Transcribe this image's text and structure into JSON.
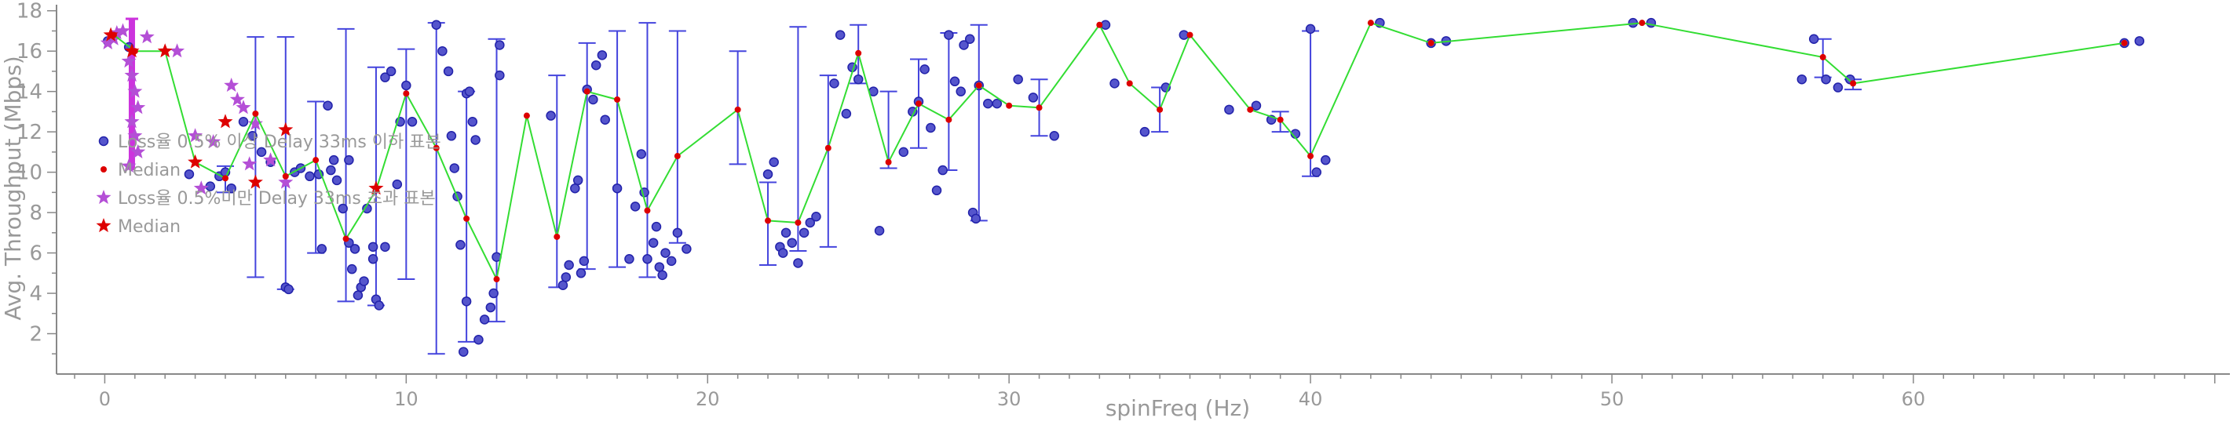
{
  "chart_data": {
    "type": "scatter",
    "title": "",
    "xlabel": "spinFreq (Hz)",
    "ylabel": "Avg. Throughput (Mbps)",
    "xlim": [
      -1.6,
      70.5
    ],
    "ylim": [
      0,
      18.3
    ],
    "xticks": [
      0,
      10,
      20,
      30,
      40,
      50,
      60
    ],
    "yticks": [
      2,
      4,
      6,
      8,
      10,
      12,
      14,
      16,
      18
    ],
    "grid": false,
    "legend_position": "left",
    "legend": [
      {
        "label": "Loss율 0.5% 이상 Delay 33ms 이하 표본",
        "marker": "circle",
        "color": "#5555cc"
      },
      {
        "label": "Median",
        "marker": "dot",
        "color": "#dd0000"
      },
      {
        "label": "Loss율 0.5%미만 Delay 33ms 초과 표본",
        "marker": "star",
        "color": "#b44fd6"
      },
      {
        "label": "Median",
        "marker": "star",
        "color": "#dd0000"
      }
    ],
    "colors": {
      "blue_points": "#5555cc",
      "blue_outline": "#2222aa",
      "error_bars": "#4444dd",
      "median_line": "#33dd33",
      "median": "#dd0000",
      "purple_stars": "#b44fd6",
      "purple_bar": "#cc33dd",
      "axis": "#888888"
    },
    "series": [
      {
        "name": "Loss율 0.5% 이상 Delay 33ms 이하 표본",
        "marker": "circle",
        "points": [
          [
            0.1,
            16.5
          ],
          [
            0.8,
            16.2
          ],
          [
            2.8,
            9.9
          ],
          [
            3.5,
            9.3
          ],
          [
            3.8,
            9.8
          ],
          [
            4.0,
            10.0
          ],
          [
            4.2,
            9.2
          ],
          [
            4.6,
            12.5
          ],
          [
            4.9,
            11.8
          ],
          [
            5.2,
            11.0
          ],
          [
            5.5,
            10.5
          ],
          [
            6.0,
            4.3
          ],
          [
            6.1,
            4.2
          ],
          [
            6.3,
            10.0
          ],
          [
            6.5,
            10.2
          ],
          [
            6.8,
            9.8
          ],
          [
            7.1,
            9.9
          ],
          [
            7.2,
            6.2
          ],
          [
            7.4,
            13.3
          ],
          [
            7.5,
            10.1
          ],
          [
            7.6,
            10.6
          ],
          [
            7.7,
            9.6
          ],
          [
            7.9,
            8.2
          ],
          [
            8.1,
            10.6
          ],
          [
            8.1,
            6.5
          ],
          [
            8.2,
            5.2
          ],
          [
            8.3,
            6.2
          ],
          [
            8.4,
            3.9
          ],
          [
            8.5,
            4.3
          ],
          [
            8.6,
            4.6
          ],
          [
            8.7,
            8.2
          ],
          [
            8.9,
            5.7
          ],
          [
            8.9,
            6.3
          ],
          [
            9.0,
            3.7
          ],
          [
            9.1,
            3.4
          ],
          [
            9.3,
            6.3
          ],
          [
            9.3,
            14.7
          ],
          [
            9.5,
            15.0
          ],
          [
            9.7,
            9.4
          ],
          [
            9.8,
            12.5
          ],
          [
            10.0,
            14.3
          ],
          [
            10.2,
            12.5
          ],
          [
            11.0,
            17.3
          ],
          [
            11.2,
            16.0
          ],
          [
            11.4,
            15.0
          ],
          [
            11.5,
            11.8
          ],
          [
            11.6,
            10.2
          ],
          [
            11.7,
            8.8
          ],
          [
            11.8,
            6.4
          ],
          [
            11.9,
            1.1
          ],
          [
            12.0,
            3.6
          ],
          [
            12.0,
            13.9
          ],
          [
            12.1,
            14.0
          ],
          [
            12.2,
            12.5
          ],
          [
            12.3,
            11.6
          ],
          [
            12.4,
            1.7
          ],
          [
            12.6,
            2.7
          ],
          [
            12.8,
            3.3
          ],
          [
            12.9,
            4.0
          ],
          [
            13.0,
            5.8
          ],
          [
            13.1,
            14.8
          ],
          [
            13.1,
            16.3
          ],
          [
            14.8,
            12.8
          ],
          [
            15.2,
            4.4
          ],
          [
            15.3,
            4.8
          ],
          [
            15.4,
            5.4
          ],
          [
            15.6,
            9.2
          ],
          [
            15.7,
            9.6
          ],
          [
            15.8,
            5.0
          ],
          [
            15.9,
            5.6
          ],
          [
            16.0,
            14.1
          ],
          [
            16.2,
            13.6
          ],
          [
            16.3,
            15.3
          ],
          [
            16.5,
            15.8
          ],
          [
            16.6,
            12.6
          ],
          [
            17.0,
            9.2
          ],
          [
            17.4,
            5.7
          ],
          [
            17.6,
            8.3
          ],
          [
            17.8,
            10.9
          ],
          [
            17.9,
            9.0
          ],
          [
            18.0,
            5.7
          ],
          [
            18.2,
            6.5
          ],
          [
            18.3,
            7.3
          ],
          [
            18.4,
            5.3
          ],
          [
            18.5,
            4.9
          ],
          [
            18.6,
            6.0
          ],
          [
            18.8,
            5.6
          ],
          [
            19.0,
            7.0
          ],
          [
            19.3,
            6.2
          ],
          [
            22.0,
            9.9
          ],
          [
            22.2,
            10.5
          ],
          [
            22.4,
            6.3
          ],
          [
            22.5,
            6.0
          ],
          [
            22.6,
            7.0
          ],
          [
            22.8,
            6.5
          ],
          [
            23.0,
            5.5
          ],
          [
            23.2,
            7.0
          ],
          [
            23.4,
            7.5
          ],
          [
            23.6,
            7.8
          ],
          [
            24.2,
            14.4
          ],
          [
            24.4,
            16.8
          ],
          [
            24.6,
            12.9
          ],
          [
            24.8,
            15.2
          ],
          [
            25.0,
            14.6
          ],
          [
            25.5,
            14.0
          ],
          [
            25.7,
            7.1
          ],
          [
            26.5,
            11.0
          ],
          [
            26.8,
            13.0
          ],
          [
            27.0,
            13.5
          ],
          [
            27.2,
            15.1
          ],
          [
            27.4,
            12.2
          ],
          [
            27.6,
            9.1
          ],
          [
            27.8,
            10.1
          ],
          [
            28.0,
            16.8
          ],
          [
            28.2,
            14.5
          ],
          [
            28.4,
            14.0
          ],
          [
            28.5,
            16.3
          ],
          [
            28.7,
            16.6
          ],
          [
            28.8,
            8.0
          ],
          [
            28.9,
            7.7
          ],
          [
            29.0,
            14.3
          ],
          [
            29.3,
            13.4
          ],
          [
            29.6,
            13.4
          ],
          [
            30.3,
            14.6
          ],
          [
            30.8,
            13.7
          ],
          [
            31.5,
            11.8
          ],
          [
            33.2,
            17.3
          ],
          [
            33.5,
            14.4
          ],
          [
            34.5,
            12.0
          ],
          [
            35.2,
            14.2
          ],
          [
            35.8,
            16.8
          ],
          [
            37.3,
            13.1
          ],
          [
            38.2,
            13.3
          ],
          [
            38.7,
            12.6
          ],
          [
            39.5,
            11.9
          ],
          [
            40.0,
            17.1
          ],
          [
            40.2,
            10.0
          ],
          [
            40.5,
            10.6
          ],
          [
            42.3,
            17.4
          ],
          [
            44.0,
            16.4
          ],
          [
            44.5,
            16.5
          ],
          [
            50.7,
            17.4
          ],
          [
            51.3,
            17.4
          ],
          [
            56.3,
            14.6
          ],
          [
            56.7,
            16.6
          ],
          [
            57.1,
            14.6
          ],
          [
            57.5,
            14.2
          ],
          [
            57.9,
            14.6
          ],
          [
            67.0,
            16.4
          ],
          [
            67.5,
            16.5
          ]
        ]
      },
      {
        "name": "Loss율 0.5%미만 Delay 33ms 초과 표본",
        "marker": "star",
        "points": [
          [
            0.1,
            16.4
          ],
          [
            0.3,
            16.6
          ],
          [
            0.4,
            16.9
          ],
          [
            0.6,
            17.0
          ],
          [
            0.8,
            15.5
          ],
          [
            0.9,
            14.8
          ],
          [
            1.0,
            14.0
          ],
          [
            1.1,
            13.2
          ],
          [
            0.9,
            12.5
          ],
          [
            1.0,
            11.8
          ],
          [
            1.1,
            11.0
          ],
          [
            0.8,
            10.3
          ],
          [
            1.4,
            16.7
          ],
          [
            2.4,
            16.0
          ],
          [
            3.0,
            11.8
          ],
          [
            3.2,
            9.2
          ],
          [
            3.6,
            11.5
          ],
          [
            4.2,
            14.3
          ],
          [
            4.4,
            13.6
          ],
          [
            4.6,
            13.2
          ],
          [
            4.8,
            10.4
          ],
          [
            5.0,
            12.4
          ],
          [
            5.5,
            10.6
          ],
          [
            6.0,
            9.5
          ]
        ]
      }
    ],
    "median_line": {
      "name": "Median",
      "points": [
        [
          0.3,
          16.8
        ],
        [
          1.0,
          16.0
        ],
        [
          2.0,
          16.0
        ],
        [
          3.0,
          10.5
        ],
        [
          4.0,
          9.7
        ],
        [
          5.0,
          12.9
        ],
        [
          6.0,
          9.8
        ],
        [
          7.0,
          10.6
        ],
        [
          8.0,
          6.7
        ],
        [
          9.0,
          9.1
        ],
        [
          10.0,
          13.9
        ],
        [
          11.0,
          11.2
        ],
        [
          12.0,
          7.7
        ],
        [
          13.0,
          4.7
        ],
        [
          14.0,
          12.8
        ],
        [
          15.0,
          6.8
        ],
        [
          16.0,
          14.0
        ],
        [
          17.0,
          13.6
        ],
        [
          18.0,
          8.1
        ],
        [
          19.0,
          10.8
        ],
        [
          21.0,
          13.1
        ],
        [
          22.0,
          7.6
        ],
        [
          23.0,
          7.5
        ],
        [
          24.0,
          11.2
        ],
        [
          25.0,
          15.9
        ],
        [
          26.0,
          10.5
        ],
        [
          27.0,
          13.4
        ],
        [
          28.0,
          12.6
        ],
        [
          29.0,
          14.3
        ],
        [
          30.0,
          13.3
        ],
        [
          31.0,
          13.2
        ],
        [
          33.0,
          17.3
        ],
        [
          34.0,
          14.4
        ],
        [
          35.0,
          13.1
        ],
        [
          36.0,
          16.8
        ],
        [
          38.0,
          13.1
        ],
        [
          39.0,
          12.6
        ],
        [
          40.0,
          10.8
        ],
        [
          42.0,
          17.4
        ],
        [
          44.0,
          16.4
        ],
        [
          51.0,
          17.4
        ],
        [
          57.0,
          15.7
        ],
        [
          58.0,
          14.4
        ],
        [
          67.0,
          16.4
        ]
      ]
    },
    "star_medians": {
      "name": "Median",
      "points": [
        [
          0.2,
          16.8
        ],
        [
          0.9,
          16.0
        ],
        [
          2.0,
          16.0
        ],
        [
          3.0,
          10.5
        ],
        [
          4.0,
          12.5
        ],
        [
          5.0,
          9.5
        ],
        [
          6.0,
          12.1
        ],
        [
          9.0,
          9.2
        ]
      ]
    },
    "error_bars": [
      [
        4.0,
        9.0,
        10.3
      ],
      [
        5.0,
        4.8,
        16.7
      ],
      [
        6.0,
        4.2,
        16.7
      ],
      [
        7.0,
        6.0,
        13.5
      ],
      [
        8.0,
        3.6,
        17.1
      ],
      [
        9.0,
        3.4,
        15.2
      ],
      [
        10.0,
        4.7,
        16.1
      ],
      [
        11.0,
        1.0,
        17.4
      ],
      [
        12.0,
        1.6,
        14.0
      ],
      [
        13.0,
        2.6,
        16.6
      ],
      [
        15.0,
        4.3,
        14.8
      ],
      [
        16.0,
        5.2,
        16.4
      ],
      [
        17.0,
        5.3,
        17.0
      ],
      [
        18.0,
        4.8,
        17.4
      ],
      [
        19.0,
        6.5,
        17.0
      ],
      [
        21.0,
        10.4,
        16.0
      ],
      [
        22.0,
        5.4,
        9.5
      ],
      [
        23.0,
        6.1,
        17.2
      ],
      [
        24.0,
        6.3,
        14.8
      ],
      [
        25.0,
        14.4,
        17.3
      ],
      [
        26.0,
        10.2,
        14.0
      ],
      [
        27.0,
        11.2,
        15.6
      ],
      [
        28.0,
        10.1,
        16.9
      ],
      [
        29.0,
        7.6,
        17.3
      ],
      [
        31.0,
        11.8,
        14.6
      ],
      [
        35.0,
        12.0,
        14.2
      ],
      [
        39.0,
        12.0,
        13.0
      ],
      [
        40.0,
        9.8,
        17.0
      ],
      [
        57.0,
        14.7,
        16.6
      ],
      [
        58.0,
        14.1,
        14.6
      ]
    ],
    "purple_bar": [
      0.9,
      10.1,
      17.6
    ]
  }
}
